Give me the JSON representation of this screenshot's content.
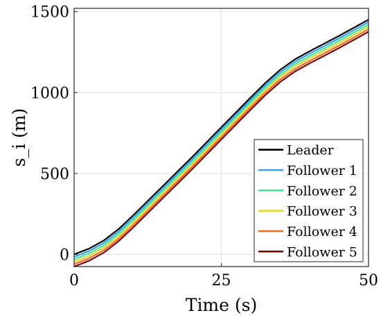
{
  "chart_data": {
    "type": "line",
    "xlabel": "Time (s)",
    "ylabel": "s_i (m)",
    "xlim": [
      0,
      50
    ],
    "ylim": [
      -75,
      1520
    ],
    "xticks": [
      0,
      25,
      50
    ],
    "yticks": [
      0,
      500,
      1000,
      1500
    ],
    "grid": true,
    "legend_position": "bottom-right",
    "series": [
      {
        "name": "Leader",
        "color": "#000000",
        "x": [
          0,
          2.5,
          5,
          7.5,
          10,
          15,
          20,
          25,
          30,
          32.5,
          35,
          37.5,
          40,
          45,
          50
        ],
        "y": [
          0,
          35,
          85,
          155,
          240,
          420,
          600,
          785,
          970,
          1060,
          1140,
          1205,
          1255,
          1350,
          1450
        ]
      },
      {
        "name": "Follower 1",
        "color": "#3a9ee6",
        "x": [
          0,
          2.5,
          5,
          7.5,
          10,
          15,
          20,
          25,
          30,
          32.5,
          35,
          37.5,
          40,
          45,
          50
        ],
        "y": [
          -15,
          20,
          70,
          140,
          225,
          405,
          585,
          770,
          955,
          1045,
          1125,
          1190,
          1240,
          1335,
          1435
        ]
      },
      {
        "name": "Follower 2",
        "color": "#3ee89a",
        "x": [
          0,
          2.5,
          5,
          7.5,
          10,
          15,
          20,
          25,
          30,
          32.5,
          35,
          37.5,
          40,
          45,
          50
        ],
        "y": [
          -30,
          5,
          55,
          125,
          210,
          390,
          570,
          755,
          940,
          1030,
          1110,
          1175,
          1225,
          1320,
          1420
        ]
      },
      {
        "name": "Follower 3",
        "color": "#e6d433",
        "x": [
          0,
          2.5,
          5,
          7.5,
          10,
          15,
          20,
          25,
          30,
          32.5,
          35,
          37.5,
          40,
          45,
          50
        ],
        "y": [
          -45,
          -10,
          40,
          110,
          195,
          375,
          555,
          740,
          925,
          1015,
          1095,
          1160,
          1210,
          1305,
          1405
        ]
      },
      {
        "name": "Follower 4",
        "color": "#ee6b1f",
        "x": [
          0,
          2.5,
          5,
          7.5,
          10,
          15,
          20,
          25,
          30,
          32.5,
          35,
          37.5,
          40,
          45,
          50
        ],
        "y": [
          -60,
          -25,
          25,
          95,
          180,
          360,
          540,
          725,
          910,
          1000,
          1080,
          1145,
          1195,
          1290,
          1390
        ]
      },
      {
        "name": "Follower 5",
        "color": "#7a0a0a",
        "x": [
          0,
          2.5,
          5,
          7.5,
          10,
          15,
          20,
          25,
          30,
          32.5,
          35,
          37.5,
          40,
          45,
          50
        ],
        "y": [
          -75,
          -40,
          10,
          80,
          165,
          345,
          525,
          710,
          895,
          985,
          1065,
          1130,
          1180,
          1275,
          1375
        ]
      }
    ]
  }
}
